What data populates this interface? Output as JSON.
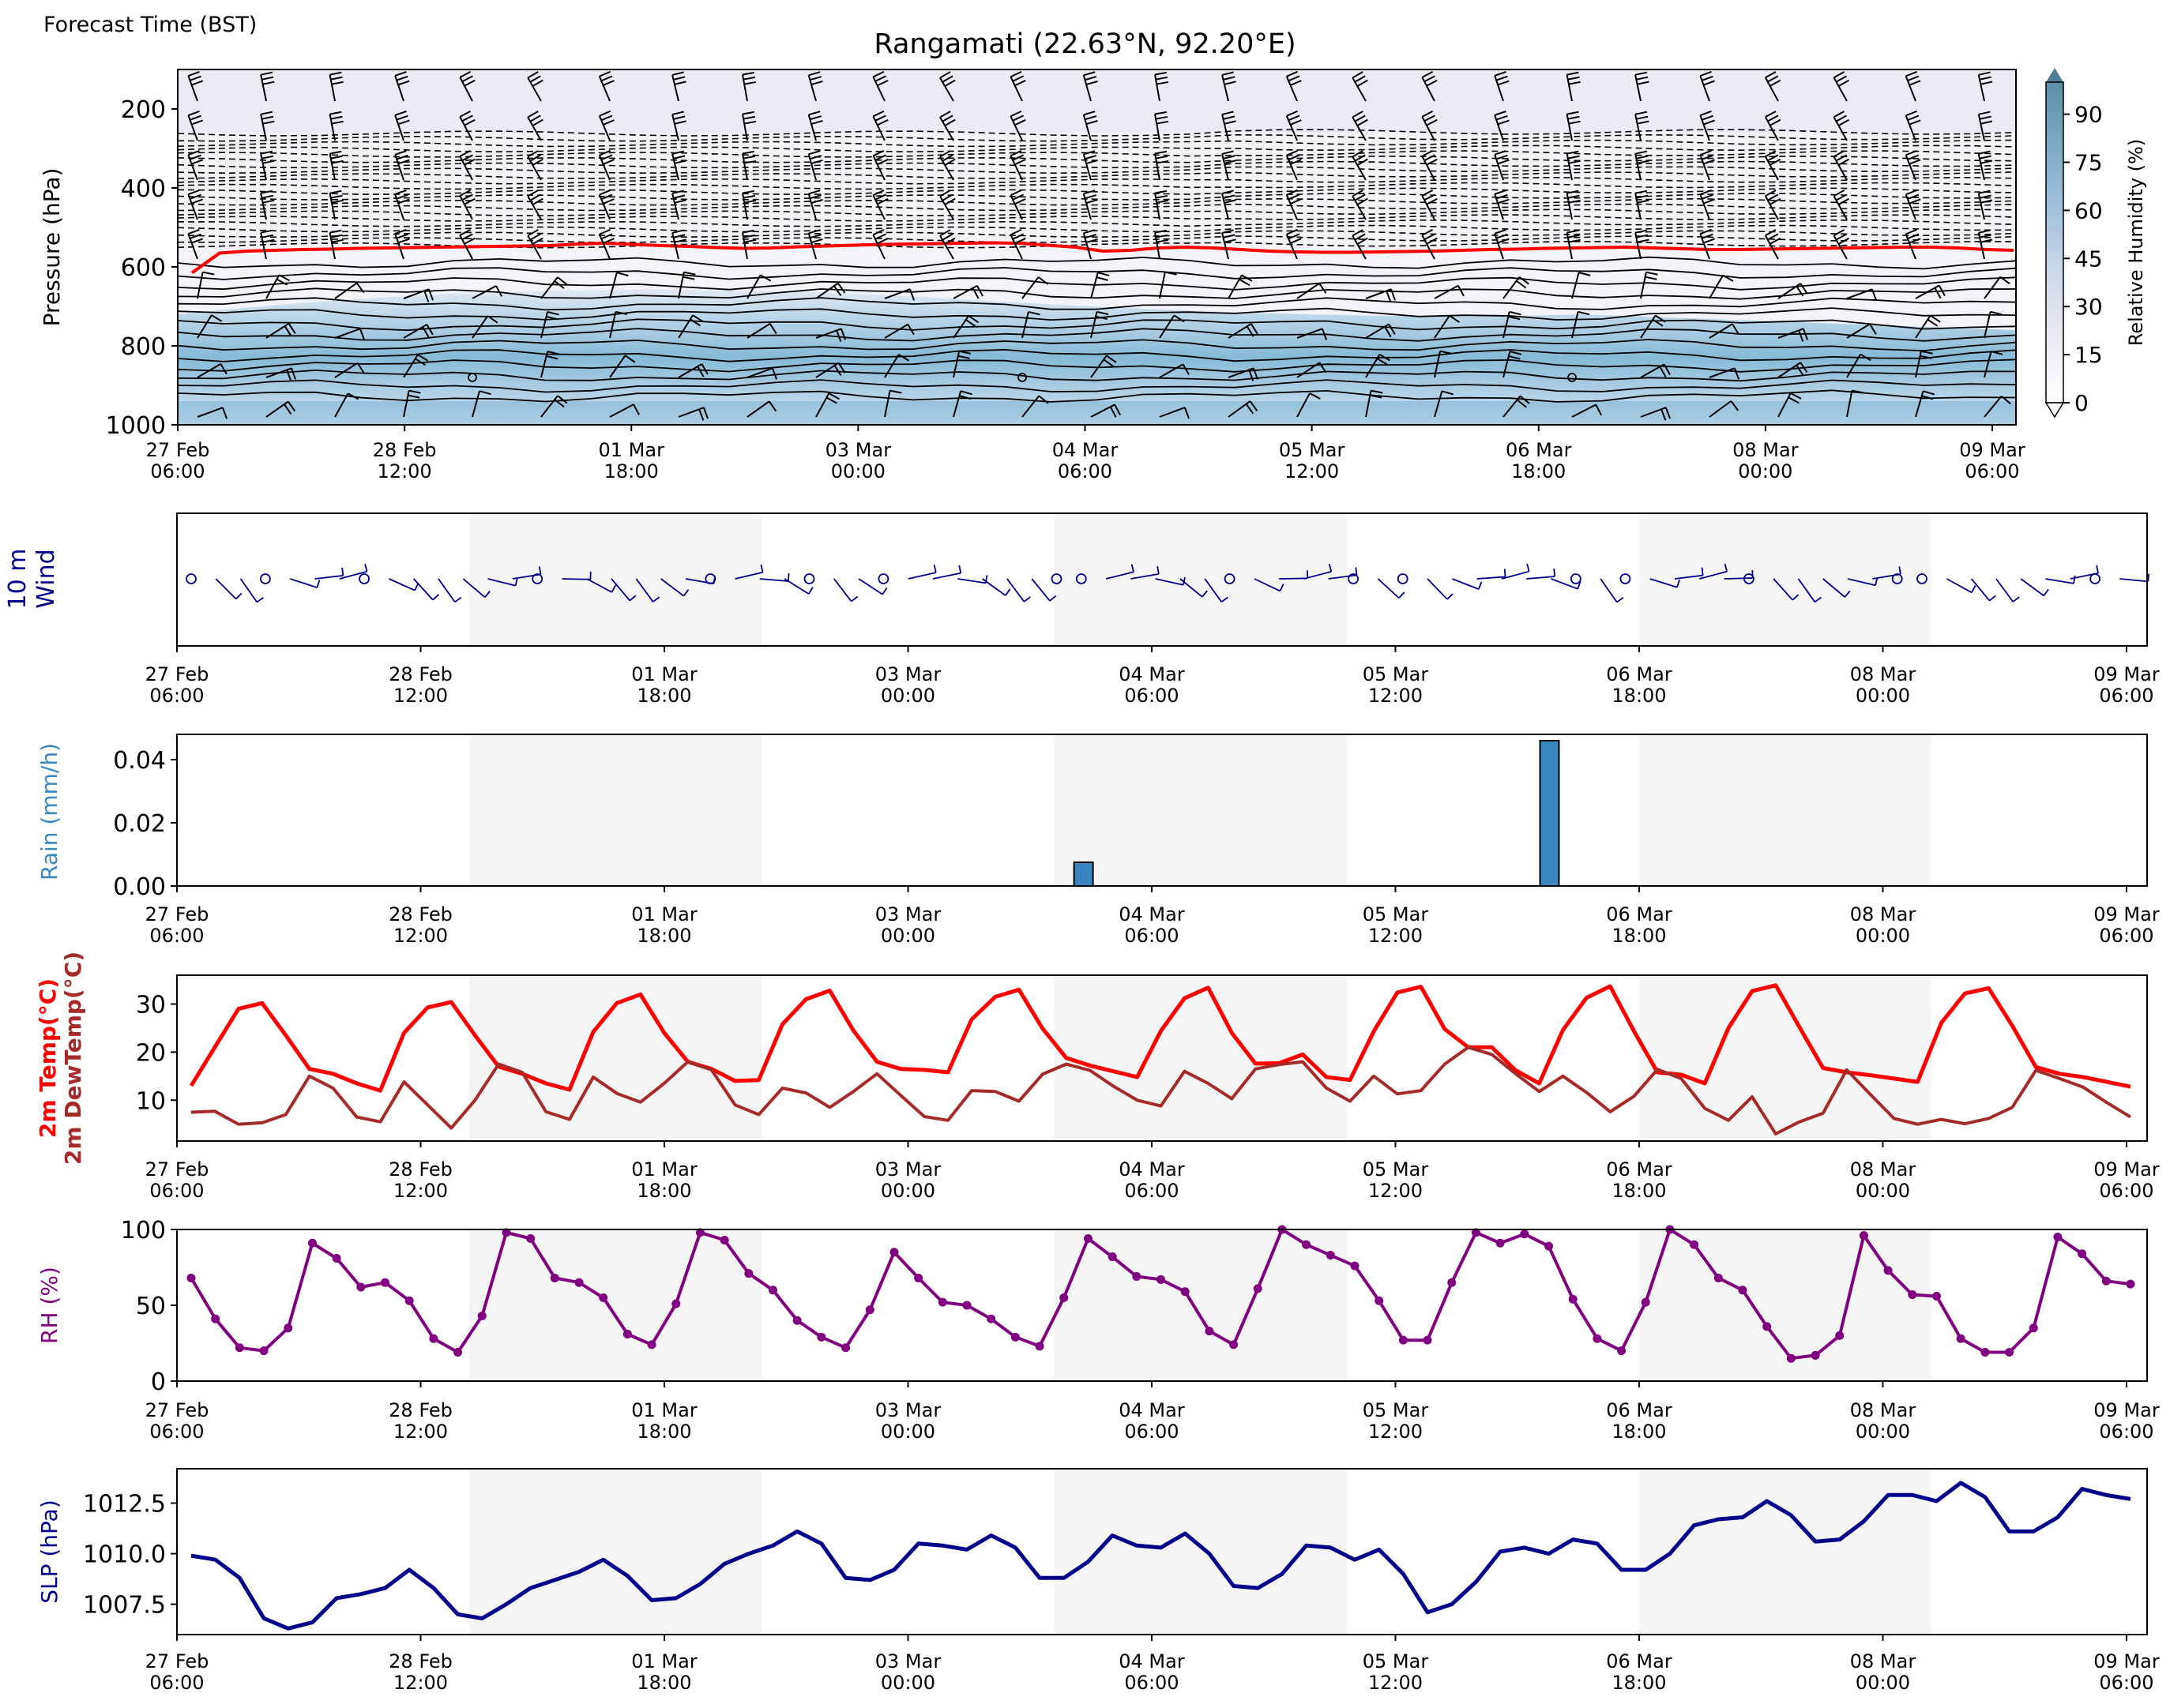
{
  "header": {
    "forecast_time_label": "Forecast Time (BST)",
    "title": "Rangamati (22.63°N, 92.20°E)"
  },
  "colors": {
    "rh_fill": "#2b8cbe",
    "freezing_line": "#ff0000",
    "wind_10m": "#00008b",
    "rain_bar": "#3a87c0",
    "temp": "#ff0000",
    "dewtemp": "#a52a2a",
    "rh_line": "#800080",
    "slp": "#00008b",
    "night_band": "#f5f5f5"
  },
  "chart_data": [
    {
      "id": "cross-section",
      "type": "heatmap",
      "description_of_layers": [
        "relative humidity contourf",
        "temperature contours",
        "wind barbs"
      ],
      "ylabel": "Pressure (hPa)",
      "yticks": [
        200,
        400,
        600,
        800,
        1000
      ],
      "ylim": [
        1000,
        100
      ],
      "y_inverted": true,
      "x_tick_labels": [
        [
          "27 Feb",
          "06:00"
        ],
        [
          "28 Feb",
          "12:00"
        ],
        [
          "01 Mar",
          "18:00"
        ],
        [
          "03 Mar",
          "00:00"
        ],
        [
          "04 Mar",
          "06:00"
        ],
        [
          "05 Mar",
          "12:00"
        ],
        [
          "06 Mar",
          "18:00"
        ],
        [
          "08 Mar",
          "00:00"
        ],
        [
          "09 Mar",
          "06:00"
        ]
      ],
      "colorbar": {
        "label": "Relative Humidity (%)",
        "ticks": [
          0,
          15,
          30,
          45,
          60,
          75,
          90
        ],
        "range": [
          0,
          100
        ],
        "extend": "both",
        "colormap": "white-to-blue"
      },
      "freezing_level_hpa": [
        615,
        565,
        560,
        558,
        556,
        555,
        553,
        552,
        551,
        550,
        549,
        548,
        547,
        546,
        542,
        540,
        543,
        546,
        548,
        551,
        553,
        552,
        549,
        547,
        545,
        543,
        542,
        541,
        540,
        539,
        540,
        545,
        550,
        560,
        558,
        552,
        550,
        552,
        556,
        560,
        562,
        563,
        563,
        562,
        561,
        560,
        558,
        556,
        555,
        553,
        552,
        551,
        550,
        552,
        554,
        556,
        556,
        555,
        554,
        553,
        552,
        551,
        550,
        550,
        552,
        556,
        558
      ]
    },
    {
      "id": "wind-10m",
      "type": "scatter",
      "ylabel_line1": "10 m",
      "ylabel_line2": "Wind",
      "x_tick_labels": [
        [
          "27 Feb",
          "06:00"
        ],
        [
          "28 Feb",
          "12:00"
        ],
        [
          "01 Mar",
          "18:00"
        ],
        [
          "03 Mar",
          "00:00"
        ],
        [
          "04 Mar",
          "06:00"
        ],
        [
          "05 Mar",
          "12:00"
        ],
        [
          "06 Mar",
          "18:00"
        ],
        [
          "08 Mar",
          "00:00"
        ],
        [
          "09 Mar",
          "06:00"
        ]
      ]
    },
    {
      "id": "rain",
      "type": "bar",
      "ylabel": "Rain (mm/h)",
      "ylim": [
        0,
        0.048
      ],
      "yticks": [
        "0.00",
        "0.02",
        "0.04"
      ],
      "bars": [
        {
          "x_day": 4.65,
          "value": 0.0075
        },
        {
          "x_day": 7.04,
          "value": 0.046
        }
      ],
      "x_tick_labels": [
        [
          "27 Feb",
          "06:00"
        ],
        [
          "28 Feb",
          "12:00"
        ],
        [
          "01 Mar",
          "18:00"
        ],
        [
          "03 Mar",
          "00:00"
        ],
        [
          "04 Mar",
          "06:00"
        ],
        [
          "05 Mar",
          "12:00"
        ],
        [
          "06 Mar",
          "18:00"
        ],
        [
          "08 Mar",
          "00:00"
        ],
        [
          "09 Mar",
          "06:00"
        ]
      ]
    },
    {
      "id": "temperature",
      "type": "line",
      "ylabel_temp": "2m Temp(°C)",
      "ylabel_dew": "2m DewTemp(°C)",
      "ylim": [
        1.5,
        36
      ],
      "yticks": [
        10,
        20,
        30
      ],
      "series": [
        {
          "name": "2m Temp(°C)",
          "values": [
            13.0,
            21.0,
            29.0,
            30.2,
            23.5,
            16.5,
            15.5,
            13.5,
            12.0,
            24.0,
            29.3,
            30.4,
            23.5,
            17.0,
            15.5,
            13.5,
            12.2,
            24.2,
            30.2,
            32.0,
            24.0,
            18.0,
            16.5,
            14.0,
            14.2,
            25.8,
            31.0,
            32.8,
            24.5,
            18.0,
            16.5,
            16.3,
            15.8,
            26.8,
            31.5,
            33.0,
            24.9,
            18.8,
            17.2,
            16.0,
            14.8,
            24.4,
            31.2,
            33.4,
            24.0,
            17.6,
            17.7,
            19.5,
            14.8,
            14.2,
            24.3,
            32.4,
            33.6,
            24.8,
            21.0,
            21.0,
            16.2,
            13.5,
            24.6,
            31.3,
            33.7,
            24.4,
            15.8,
            15.3,
            13.5,
            25.0,
            32.7,
            33.9,
            25.2,
            16.7,
            15.8,
            15.2,
            14.5,
            13.8,
            26.1,
            32.2,
            33.3,
            25.5,
            16.9,
            15.5,
            14.8,
            13.8,
            12.8
          ]
        },
        {
          "name": "2m DewTemp(°C)",
          "values": [
            7.5,
            7.7,
            5.0,
            5.3,
            7.0,
            15.0,
            12.5,
            6.5,
            5.5,
            13.8,
            9.0,
            4.2,
            10.0,
            17.5,
            15.8,
            7.6,
            6.0,
            14.8,
            11.4,
            9.6,
            13.5,
            18.0,
            16.3,
            9.0,
            7.0,
            12.5,
            11.5,
            8.5,
            11.8,
            15.5,
            11.0,
            6.6,
            5.8,
            12.0,
            11.8,
            9.8,
            15.4,
            17.5,
            16.2,
            12.9,
            10.0,
            8.8,
            16.0,
            13.5,
            10.3,
            16.5,
            17.4,
            18.0,
            12.5,
            9.8,
            15.0,
            11.3,
            12.0,
            17.5,
            21.0,
            19.5,
            15.5,
            11.8,
            15.0,
            11.6,
            7.6,
            10.8,
            16.4,
            14.5,
            8.3,
            5.8,
            10.7,
            3.0,
            5.5,
            7.3,
            16.3,
            11.2,
            6.2,
            5.0,
            6.0,
            5.1,
            6.2,
            8.5,
            16.2,
            14.5,
            12.7,
            9.5,
            6.5
          ]
        }
      ],
      "x_tick_labels": [
        [
          "27 Feb",
          "06:00"
        ],
        [
          "28 Feb",
          "12:00"
        ],
        [
          "01 Mar",
          "18:00"
        ],
        [
          "03 Mar",
          "00:00"
        ],
        [
          "04 Mar",
          "06:00"
        ],
        [
          "05 Mar",
          "12:00"
        ],
        [
          "06 Mar",
          "18:00"
        ],
        [
          "08 Mar",
          "00:00"
        ],
        [
          "09 Mar",
          "06:00"
        ]
      ]
    },
    {
      "id": "relative-humidity",
      "type": "line",
      "ylabel": "RH (%)",
      "ylim": [
        0,
        100
      ],
      "yticks": [
        0,
        50,
        100
      ],
      "series": [
        {
          "name": "RH (%)",
          "values": [
            68,
            41,
            22,
            20,
            35,
            91,
            81,
            62,
            65,
            53,
            28,
            19,
            43,
            98,
            94,
            68,
            65,
            55,
            31,
            24,
            51,
            98,
            93,
            71,
            60,
            40,
            29,
            22,
            47,
            85,
            68,
            52,
            50,
            41,
            29,
            23,
            55,
            94,
            82,
            69,
            67,
            59,
            33,
            24,
            61,
            100,
            90,
            83,
            76,
            53,
            27,
            27,
            65,
            98,
            91,
            97,
            89,
            54,
            28,
            20,
            52,
            100,
            90,
            68,
            60,
            36,
            15,
            17,
            30,
            96,
            73,
            57,
            56,
            28,
            19,
            19,
            35,
            95,
            84,
            66,
            64
          ]
        }
      ],
      "x_tick_labels": [
        [
          "27 Feb",
          "06:00"
        ],
        [
          "28 Feb",
          "12:00"
        ],
        [
          "01 Mar",
          "18:00"
        ],
        [
          "03 Mar",
          "00:00"
        ],
        [
          "04 Mar",
          "06:00"
        ],
        [
          "05 Mar",
          "12:00"
        ],
        [
          "06 Mar",
          "18:00"
        ],
        [
          "08 Mar",
          "00:00"
        ],
        [
          "09 Mar",
          "06:00"
        ]
      ]
    },
    {
      "id": "sea-level-pressure",
      "type": "line",
      "ylabel": "SLP (hPa)",
      "ylim": [
        1006,
        1014.2
      ],
      "yticks": [
        "1007.5",
        "1010.0",
        "1012.5"
      ],
      "series": [
        {
          "name": "SLP (hPa)",
          "values": [
            1009.9,
            1009.7,
            1008.8,
            1006.8,
            1006.3,
            1006.6,
            1007.8,
            1008.0,
            1008.3,
            1009.2,
            1008.3,
            1007.0,
            1006.8,
            1007.5,
            1008.3,
            1008.7,
            1009.1,
            1009.7,
            1008.9,
            1007.7,
            1007.8,
            1008.5,
            1009.5,
            1010.0,
            1010.4,
            1011.1,
            1010.5,
            1008.8,
            1008.7,
            1009.2,
            1010.5,
            1010.4,
            1010.2,
            1010.9,
            1010.3,
            1008.8,
            1008.8,
            1009.6,
            1010.9,
            1010.4,
            1010.3,
            1011.0,
            1010.0,
            1008.4,
            1008.3,
            1009.0,
            1010.4,
            1010.3,
            1009.7,
            1010.2,
            1009.0,
            1007.1,
            1007.5,
            1008.6,
            1010.1,
            1010.3,
            1010.0,
            1010.7,
            1010.5,
            1009.2,
            1009.2,
            1010.0,
            1011.4,
            1011.7,
            1011.8,
            1012.6,
            1011.9,
            1010.6,
            1010.7,
            1011.6,
            1012.9,
            1012.9,
            1012.6,
            1013.5,
            1012.8,
            1011.1,
            1011.1,
            1011.8,
            1013.2,
            1012.9,
            1012.7
          ]
        }
      ],
      "x_tick_labels": [
        [
          "27 Feb",
          "06:00"
        ],
        [
          "28 Feb",
          "12:00"
        ],
        [
          "01 Mar",
          "18:00"
        ],
        [
          "03 Mar",
          "00:00"
        ],
        [
          "04 Mar",
          "06:00"
        ],
        [
          "05 Mar",
          "12:00"
        ],
        [
          "06 Mar",
          "18:00"
        ],
        [
          "08 Mar",
          "00:00"
        ],
        [
          "09 Mar",
          "06:00"
        ]
      ]
    }
  ]
}
